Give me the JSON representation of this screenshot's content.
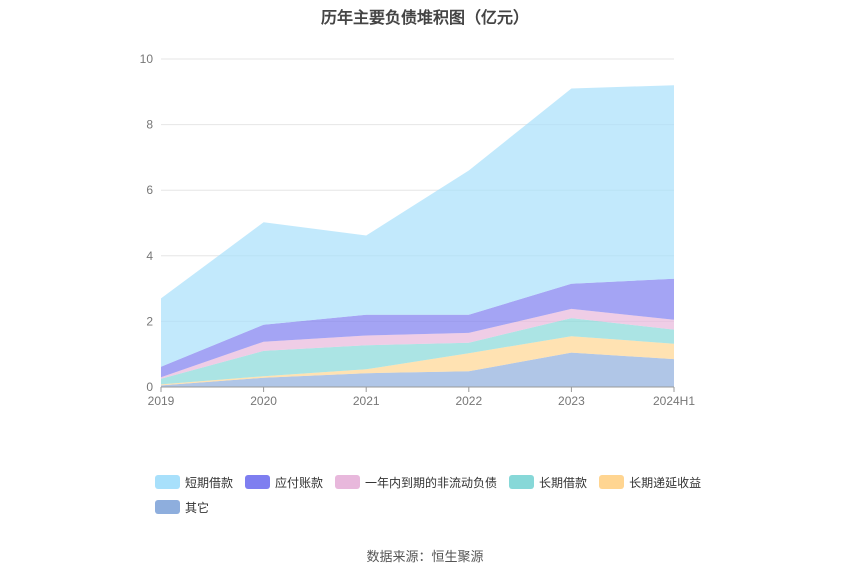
{
  "chart_data": {
    "type": "area",
    "stacked": true,
    "title": "历年主要负债堆积图（亿元）",
    "x": [
      "2019",
      "2020",
      "2021",
      "2022",
      "2023",
      "2024H1"
    ],
    "ylim": [
      0,
      10
    ],
    "yticks": [
      0,
      2,
      4,
      6,
      8,
      10
    ],
    "grid": true,
    "legend_position": "bottom",
    "series": [
      {
        "name": "其它",
        "color": "#8eaedd",
        "values": [
          0.05,
          0.28,
          0.42,
          0.48,
          1.05,
          0.85
        ]
      },
      {
        "name": "长期递延收益",
        "color": "#ffd591",
        "values": [
          0.03,
          0.05,
          0.12,
          0.55,
          0.5,
          0.47
        ]
      },
      {
        "name": "长期借款",
        "color": "#87d8d8",
        "values": [
          0.17,
          0.77,
          0.73,
          0.32,
          0.55,
          0.43
        ]
      },
      {
        "name": "一年内到期的非流动负债",
        "color": "#e8b8dc",
        "values": [
          0.05,
          0.28,
          0.3,
          0.3,
          0.28,
          0.3
        ]
      },
      {
        "name": "应付账款",
        "color": "#7e7ef0",
        "values": [
          0.32,
          0.52,
          0.63,
          0.55,
          0.77,
          1.25
        ]
      },
      {
        "name": "短期借款",
        "color": "#a8e0fb",
        "values": [
          2.08,
          3.12,
          2.42,
          4.4,
          5.95,
          5.9
        ]
      }
    ],
    "legend_order": [
      "短期借款",
      "应付账款",
      "一年内到期的非流动负债",
      "长期借款",
      "长期递延收益",
      "其它"
    ]
  },
  "source_text": "数据来源：恒生聚源"
}
